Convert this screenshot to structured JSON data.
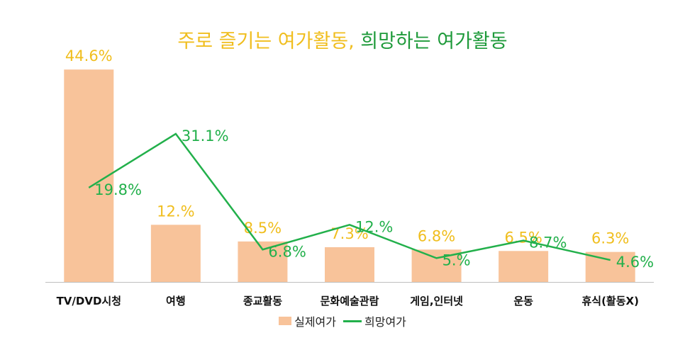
{
  "title": {
    "part1": "주로 즐기는 여가활동,",
    "part2": " 희망하는 여가활동",
    "color1": "#F0BE1E",
    "color2": "#1E9A3A"
  },
  "chart_data": {
    "type": "bar",
    "categories": [
      "TV/DVD시청",
      "여행",
      "종교활동",
      "문화예술관람",
      "게임,인터넷",
      "운동",
      "휴식(활동X)"
    ],
    "series": [
      {
        "name": "실제여가",
        "type": "bar",
        "values": [
          44.6,
          12.0,
          8.5,
          7.3,
          6.8,
          6.5,
          6.3
        ],
        "labels": [
          "44.6%",
          "12.%",
          "8.5%",
          "7.3%",
          "6.8%",
          "6.5%",
          "6.3%"
        ],
        "color": "#F8C39A",
        "label_color": "#F0BE1E"
      },
      {
        "name": "희망여가",
        "type": "line",
        "values": [
          19.8,
          31.1,
          6.8,
          12.0,
          5.0,
          8.7,
          4.6
        ],
        "labels": [
          "19.8%",
          "31.1%",
          "6.8%",
          "12.%",
          "5.%",
          "8.7%",
          "4.6%"
        ],
        "color": "#22B04B",
        "label_color": "#22B04B"
      }
    ],
    "ylim": [
      0,
      47
    ],
    "grid": false,
    "legend": "bottom"
  }
}
